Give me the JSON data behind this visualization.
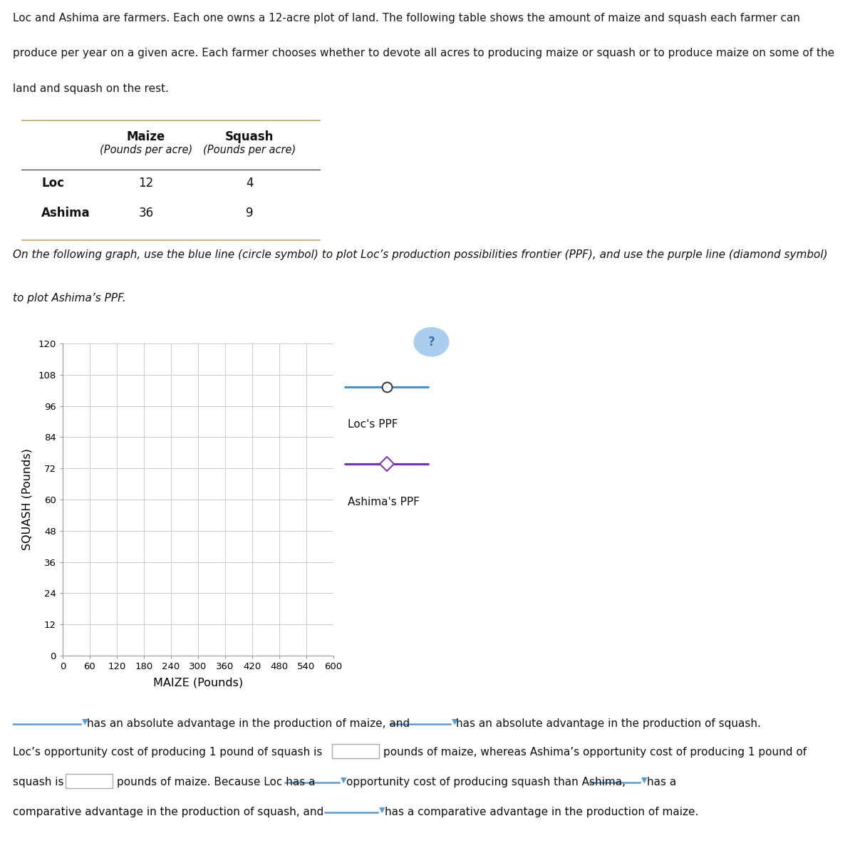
{
  "intro_line1": "Loc and Ashima are farmers. Each one owns a 12-acre plot of land. The following table shows the amount of maize and squash each farmer can",
  "intro_line2": "produce per year on a given acre. Each farmer chooses whether to devote all acres to producing maize or squash or to produce maize on some of the",
  "intro_line3": "land and squash on the rest.",
  "table_header_col1": "Maize",
  "table_header_col2": "Squash",
  "table_sub_col1": "(Pounds per acre)",
  "table_sub_col2": "(Pounds per acre)",
  "row1_name": "Loc",
  "row1_maize": "12",
  "row1_squash": "4",
  "row2_name": "Ashima",
  "row2_maize": "36",
  "row2_squash": "9",
  "instr1": "On the following graph, use the blue line (circle symbol) to plot Loc’s production possibilities frontier (PPF), and use the purple line (diamond symbol)",
  "instr2": "to plot Ashima’s PPF.",
  "graph_xlim": [
    0,
    600
  ],
  "graph_ylim": [
    0,
    120
  ],
  "graph_xticks": [
    0,
    60,
    120,
    180,
    240,
    300,
    360,
    420,
    480,
    540,
    600
  ],
  "graph_yticks": [
    0,
    12,
    24,
    36,
    48,
    60,
    72,
    84,
    96,
    108,
    120
  ],
  "graph_xlabel": "MAIZE (Pounds)",
  "graph_ylabel": "SQUASH (Pounds)",
  "loc_label": "Loc's PPF",
  "ashima_label": "Ashima's PPF",
  "loc_color": "#4a90d9",
  "ashima_color": "#7b2fbe",
  "table_tan": "#c8b882",
  "grid_color": "#cccccc",
  "panel_outer_bg": "#e8e8e8",
  "panel_inner_bg": "#f0f0f0",
  "plot_bg": "#ffffff",
  "blue_line": "#5b9bd5",
  "text_color": "#1a1a1a"
}
